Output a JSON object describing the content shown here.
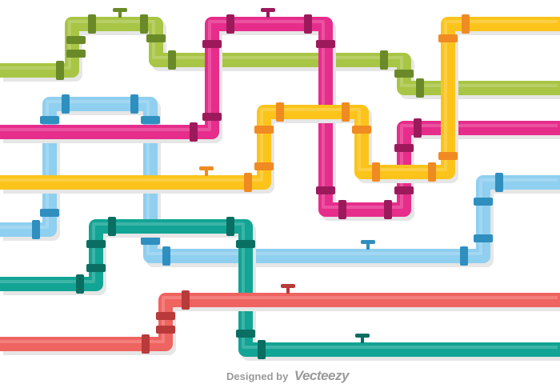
{
  "credit": {
    "prefix": "Designed by",
    "brand": "Vecteezy"
  },
  "colors": {
    "lime": {
      "pipe": "#a8c545",
      "joint": "#6a8a2a"
    },
    "magenta": {
      "pipe": "#e62d8b",
      "joint": "#9c1a5c"
    },
    "yellow": {
      "pipe": "#fcc41a",
      "joint": "#f08a22"
    },
    "skyblue": {
      "pipe": "#8fcff0",
      "joint": "#2f8fbf"
    },
    "teal": {
      "pipe": "#12a494",
      "joint": "#0a6e62"
    },
    "coral": {
      "pipe": "#ef6360",
      "joint": "#b83a3a"
    }
  },
  "pipes": [
    {
      "name": "pipe-lime",
      "color": "lime"
    },
    {
      "name": "pipe-skyblue",
      "color": "skyblue"
    },
    {
      "name": "pipe-magenta",
      "color": "magenta"
    },
    {
      "name": "pipe-yellow",
      "color": "yellow"
    },
    {
      "name": "pipe-teal",
      "color": "teal"
    },
    {
      "name": "pipe-coral",
      "color": "coral"
    }
  ]
}
